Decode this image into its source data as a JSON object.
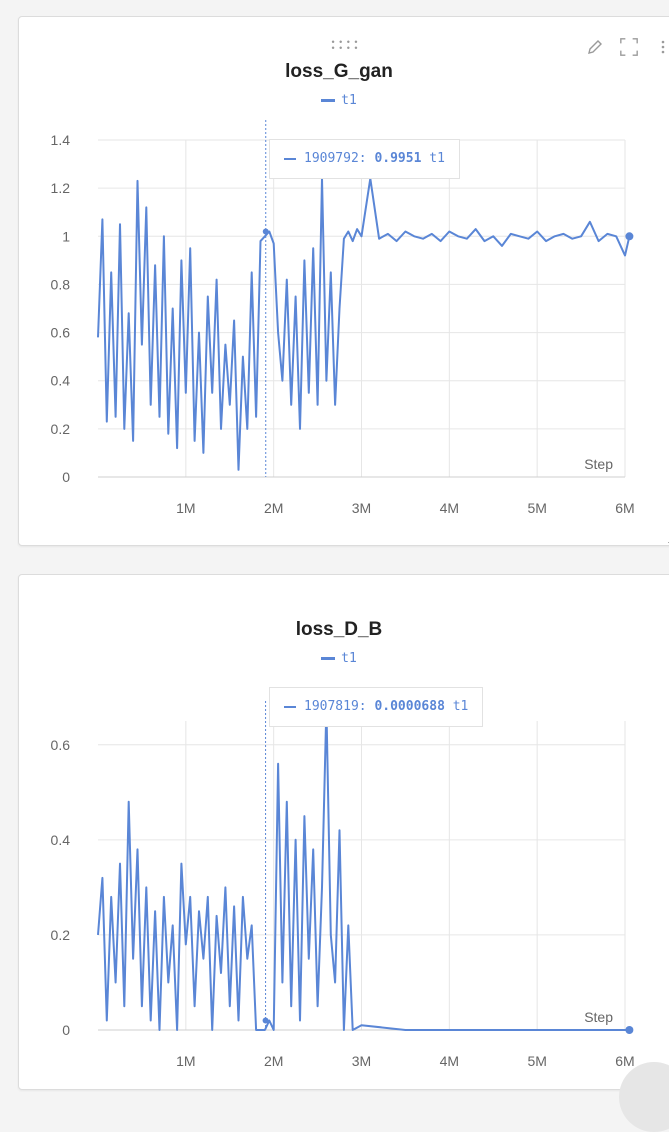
{
  "toolbar": {
    "icons": [
      "pencil-icon",
      "fullscreen-icon",
      "more-vertical-icon"
    ]
  },
  "colors": {
    "series": "#5a86d6",
    "grid": "#e6e6e6",
    "axis_text": "#666666"
  },
  "chart_data": [
    {
      "type": "line",
      "title": "loss_G_gan",
      "xlabel": "Step",
      "ylabel": "",
      "x_ticks": [
        "1M",
        "2M",
        "3M",
        "4M",
        "5M",
        "6M"
      ],
      "x_tick_values": [
        1000000,
        2000000,
        3000000,
        4000000,
        5000000,
        6000000
      ],
      "y_ticks": [
        "0",
        "0.2",
        "0.4",
        "0.6",
        "0.8",
        "1",
        "1.2",
        "1.4"
      ],
      "ylim": [
        0,
        1.4
      ],
      "xlim": [
        0,
        6000000
      ],
      "grid": true,
      "legend": {
        "position": "top-center",
        "entries": [
          "t1"
        ]
      },
      "tooltip": {
        "step": "1909792:",
        "value": "0.9951",
        "series": "t1",
        "x": 1909792
      },
      "series": [
        {
          "name": "t1",
          "x": [
            0,
            50000,
            100000,
            150000,
            200000,
            250000,
            300000,
            350000,
            400000,
            450000,
            500000,
            550000,
            600000,
            650000,
            700000,
            750000,
            800000,
            850000,
            900000,
            950000,
            1000000,
            1050000,
            1100000,
            1150000,
            1200000,
            1250000,
            1300000,
            1350000,
            1400000,
            1450000,
            1500000,
            1550000,
            1600000,
            1650000,
            1700000,
            1750000,
            1800000,
            1850000,
            1900000,
            1950000,
            2000000,
            2050000,
            2100000,
            2150000,
            2200000,
            2250000,
            2300000,
            2350000,
            2400000,
            2450000,
            2500000,
            2550000,
            2600000,
            2650000,
            2700000,
            2750000,
            2800000,
            2850000,
            2900000,
            2950000,
            3000000,
            3100000,
            3200000,
            3300000,
            3400000,
            3500000,
            3600000,
            3700000,
            3800000,
            3900000,
            4000000,
            4100000,
            4200000,
            4300000,
            4400000,
            4500000,
            4600000,
            4700000,
            4800000,
            4900000,
            5000000,
            5100000,
            5200000,
            5300000,
            5400000,
            5500000,
            5600000,
            5700000,
            5800000,
            5900000,
            6000000,
            6050000
          ],
          "values": [
            0.58,
            1.07,
            0.23,
            0.85,
            0.25,
            1.05,
            0.2,
            0.68,
            0.15,
            1.23,
            0.55,
            1.12,
            0.3,
            0.88,
            0.25,
            1.0,
            0.18,
            0.7,
            0.12,
            0.9,
            0.35,
            0.95,
            0.15,
            0.6,
            0.1,
            0.75,
            0.35,
            0.82,
            0.2,
            0.55,
            0.3,
            0.65,
            0.03,
            0.5,
            0.2,
            0.85,
            0.25,
            0.98,
            1.0,
            1.02,
            0.97,
            0.6,
            0.4,
            0.82,
            0.3,
            0.75,
            0.2,
            0.9,
            0.35,
            0.95,
            0.3,
            1.24,
            0.4,
            0.85,
            0.3,
            0.7,
            0.99,
            1.02,
            0.98,
            1.03,
            1.0,
            1.24,
            0.99,
            1.01,
            0.98,
            1.02,
            1.0,
            0.99,
            1.01,
            0.98,
            1.02,
            1.0,
            0.99,
            1.03,
            0.98,
            1.0,
            0.96,
            1.01,
            1.0,
            0.99,
            1.02,
            0.98,
            1.0,
            1.01,
            0.99,
            1.0,
            1.06,
            0.98,
            1.01,
            1.0,
            0.92,
            1.0
          ]
        }
      ]
    },
    {
      "type": "line",
      "title": "loss_D_B",
      "xlabel": "Step",
      "ylabel": "",
      "x_ticks": [
        "1M",
        "2M",
        "3M",
        "4M",
        "5M",
        "6M"
      ],
      "x_tick_values": [
        1000000,
        2000000,
        3000000,
        4000000,
        5000000,
        6000000
      ],
      "y_ticks": [
        "0",
        "0.2",
        "0.4",
        "0.6"
      ],
      "ylim": [
        0,
        0.65
      ],
      "xlim": [
        0,
        6000000
      ],
      "grid": true,
      "legend": {
        "position": "top-center",
        "entries": [
          "t1"
        ]
      },
      "tooltip": {
        "step": "1907819:",
        "value": "0.0000688",
        "series": "t1",
        "x": 1907819
      },
      "series": [
        {
          "name": "t1",
          "x": [
            0,
            50000,
            100000,
            150000,
            200000,
            250000,
            300000,
            350000,
            400000,
            450000,
            500000,
            550000,
            600000,
            650000,
            700000,
            750000,
            800000,
            850000,
            900000,
            950000,
            1000000,
            1050000,
            1100000,
            1150000,
            1200000,
            1250000,
            1300000,
            1350000,
            1400000,
            1450000,
            1500000,
            1550000,
            1600000,
            1650000,
            1700000,
            1750000,
            1800000,
            1850000,
            1900000,
            1950000,
            2000000,
            2050000,
            2100000,
            2150000,
            2200000,
            2250000,
            2300000,
            2350000,
            2400000,
            2450000,
            2500000,
            2550000,
            2600000,
            2650000,
            2700000,
            2750000,
            2800000,
            2850000,
            2900000,
            3000000,
            3500000,
            4000000,
            4500000,
            5000000,
            5500000,
            6000000,
            6050000
          ],
          "values": [
            0.2,
            0.32,
            0.02,
            0.28,
            0.1,
            0.35,
            0.05,
            0.48,
            0.15,
            0.38,
            0.05,
            0.3,
            0.02,
            0.25,
            0.0,
            0.28,
            0.1,
            0.22,
            0.0,
            0.35,
            0.18,
            0.28,
            0.05,
            0.25,
            0.15,
            0.28,
            0.0,
            0.24,
            0.12,
            0.3,
            0.05,
            0.26,
            0.02,
            0.28,
            0.15,
            0.22,
            0.0,
            0.0,
            0.0,
            0.02,
            0.0,
            0.56,
            0.1,
            0.48,
            0.05,
            0.4,
            0.02,
            0.45,
            0.15,
            0.38,
            0.05,
            0.3,
            0.68,
            0.2,
            0.1,
            0.42,
            0.0,
            0.22,
            0.0,
            0.01,
            0.0,
            0.0,
            0.0,
            0.0,
            0.0,
            0.0,
            0.0
          ]
        }
      ]
    }
  ]
}
